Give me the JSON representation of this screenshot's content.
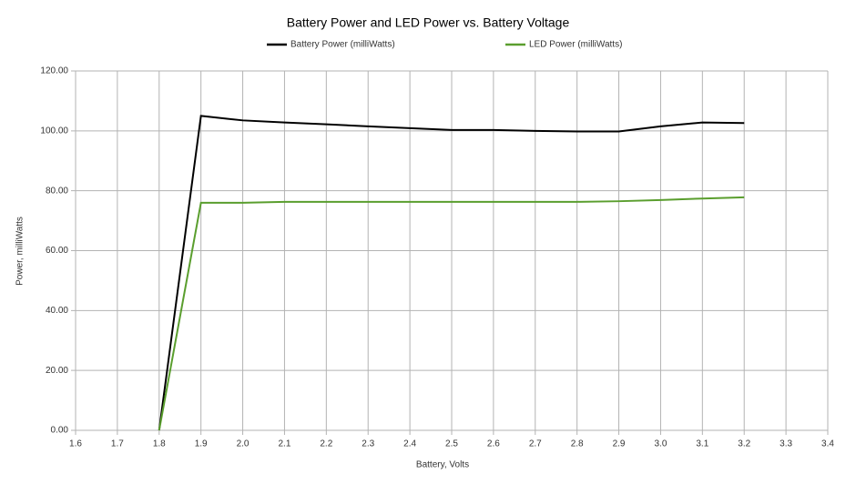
{
  "chart_data": {
    "type": "line",
    "title": "Battery Power and LED Power vs. Battery Voltage",
    "x_label": "Battery, Volts",
    "y_label": "Power, milliWatts",
    "x": [
      1.8,
      1.9,
      2.0,
      2.1,
      2.2,
      2.3,
      2.4,
      2.5,
      2.6,
      2.7,
      2.8,
      2.9,
      3.0,
      3.1,
      3.2
    ],
    "series": [
      {
        "name": "Battery Power (milliWatts)",
        "color": "#000000",
        "values": [
          0,
          105,
          103.5,
          102.8,
          102.2,
          101.5,
          100.9,
          100.3,
          100.3,
          100.0,
          99.8,
          99.8,
          101.5,
          102.8,
          102.6
        ]
      },
      {
        "name": "LED Power (milliWatts)",
        "color": "#5a9e2e",
        "values": [
          0,
          76,
          76,
          76.3,
          76.3,
          76.3,
          76.3,
          76.3,
          76.3,
          76.3,
          76.3,
          76.5,
          76.9,
          77.4,
          77.8
        ]
      }
    ],
    "xlim": [
      1.6,
      3.4
    ],
    "xticks": [
      1.6,
      1.7,
      1.8,
      1.9,
      {
        "value": 2,
        "label": "2.0"
      },
      2.1,
      2.2,
      2.3,
      2.4,
      2.5,
      2.6,
      2.7,
      2.8,
      2.9,
      {
        "value": 3,
        "label": "3.0"
      },
      3.1,
      3.2,
      3.3,
      3.4
    ],
    "ylim": [
      0,
      120
    ],
    "yticks": [
      {
        "value": 0,
        "label": "0.00"
      },
      {
        "value": 20,
        "label": "20.00"
      },
      {
        "value": 40,
        "label": "40.00"
      },
      {
        "value": 60,
        "label": "60.00"
      },
      {
        "value": 80,
        "label": "80.00"
      },
      {
        "value": 100,
        "label": "100.00"
      },
      {
        "value": 120,
        "label": "120.00"
      }
    ],
    "grid": true,
    "legend": "top"
  }
}
